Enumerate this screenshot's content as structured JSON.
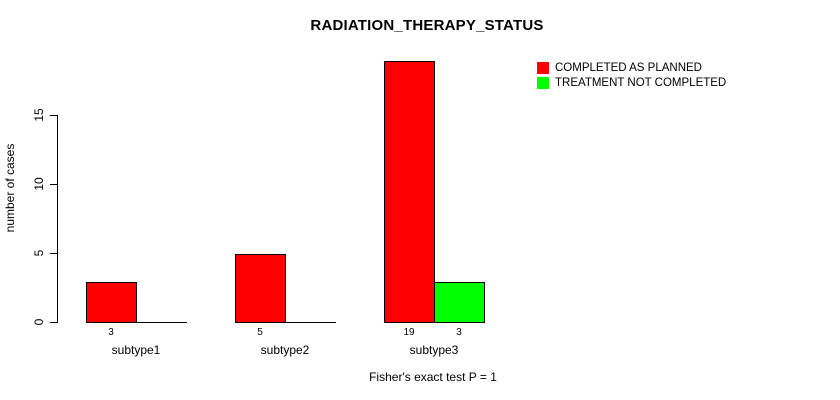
{
  "page": {
    "background_color": "#ffffff",
    "text_color": "#000000"
  },
  "chart_data": {
    "type": "bar",
    "title": "RADIATION_THERAPY_STATUS",
    "ylabel": "number of cases",
    "xlabel": "",
    "footnote": "Fisher's exact test P = 1",
    "categories": [
      "subtype1",
      "subtype2",
      "subtype3"
    ],
    "series": [
      {
        "name": "COMPLETED AS PLANNED",
        "color": "#ff0000",
        "values": [
          3,
          5,
          19
        ]
      },
      {
        "name": "TREATMENT NOT COMPLETED",
        "color": "#00ff00",
        "values": [
          0,
          0,
          3
        ]
      }
    ],
    "bar_value_labels": [
      [
        "3",
        ""
      ],
      [
        "5",
        ""
      ],
      [
        "19",
        "3"
      ]
    ],
    "yticks": [
      0,
      5,
      10,
      15
    ],
    "ylim": [
      0,
      19.2
    ],
    "grid": false,
    "legend_position": "top-right",
    "axis_color": "#000000",
    "bar_border_color": "#000000"
  }
}
